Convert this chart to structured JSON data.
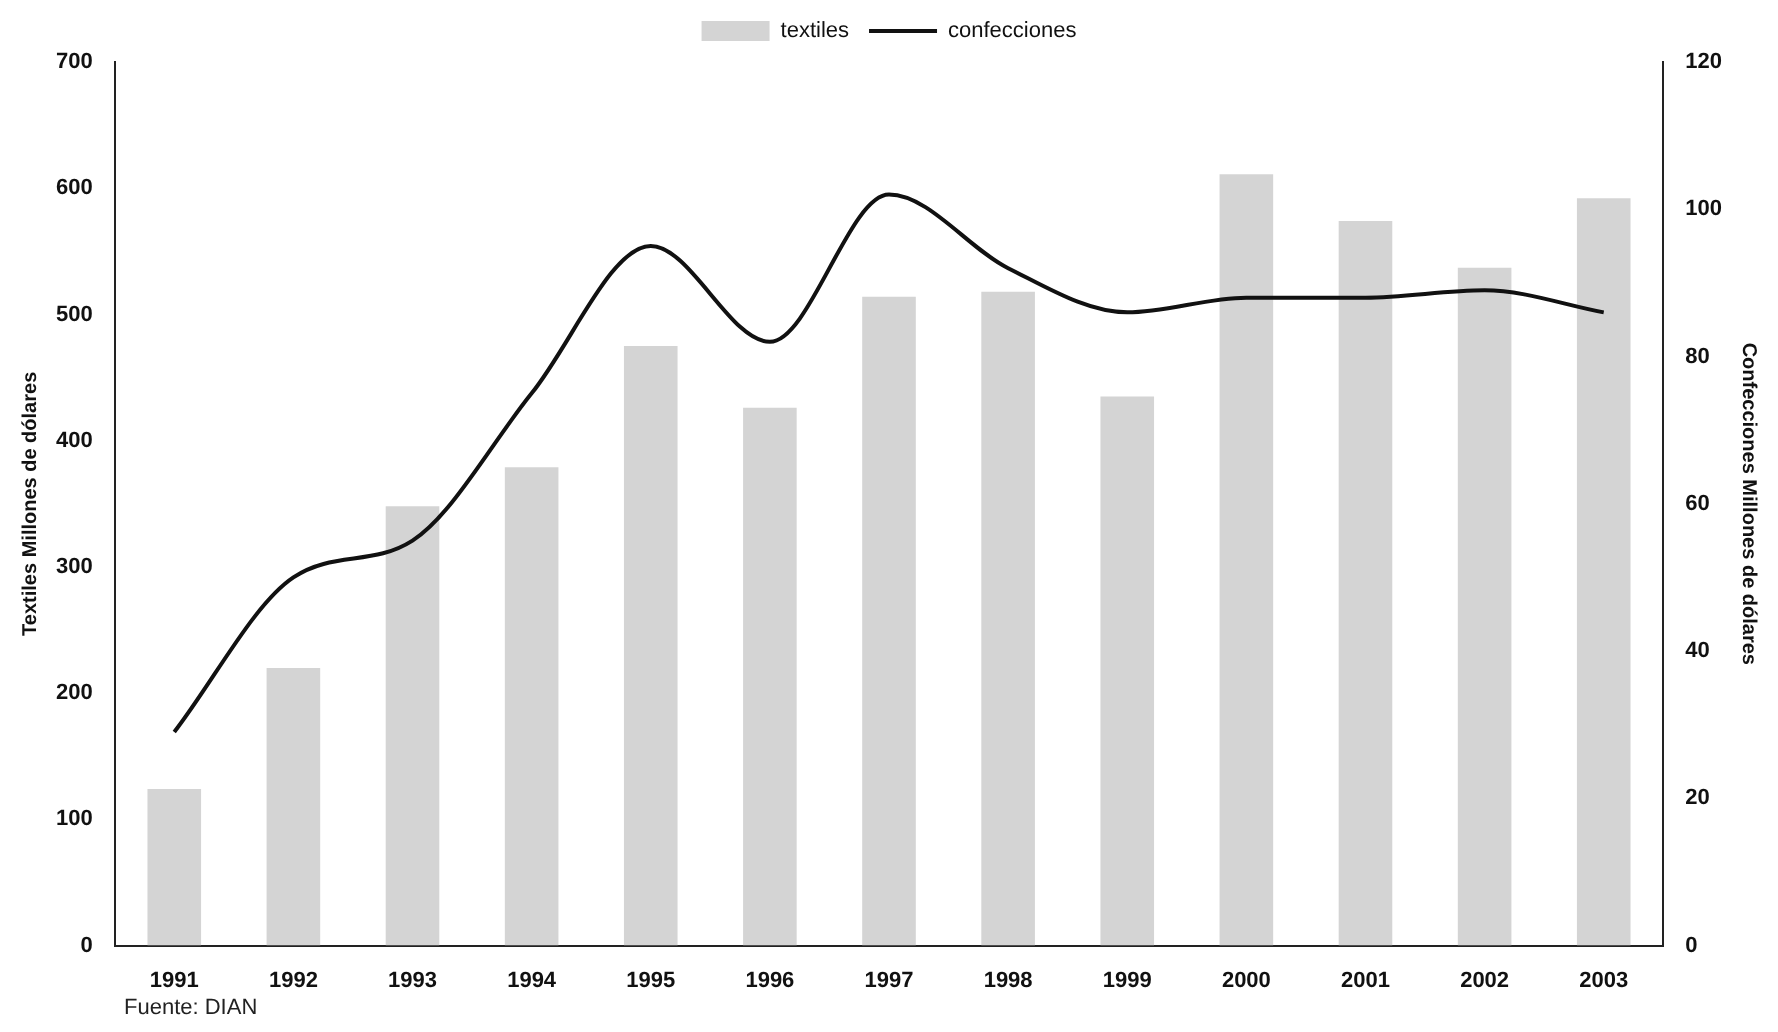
{
  "chart_data": {
    "type": "bar",
    "categories": [
      "1991",
      "1992",
      "1993",
      "1994",
      "1995",
      "1996",
      "1997",
      "1998",
      "1999",
      "2000",
      "2001",
      "2002",
      "2003"
    ],
    "series": [
      {
        "name": "textiles",
        "color": "#d4d4d4",
        "values": [
          124,
          220,
          348,
          379,
          475,
          426,
          514,
          518,
          435,
          611,
          574,
          537,
          592
        ]
      },
      {
        "name": "confecciones",
        "type": "line",
        "axis": "y2",
        "color": "#111111",
        "values": [
          29,
          50,
          55,
          75,
          95,
          82,
          102,
          92,
          86,
          88,
          88,
          89,
          86
        ]
      }
    ],
    "ylabel": "Textiles Millones de dólares",
    "y2label": "Confecciones Millones de dólares",
    "ylim": [
      0,
      700
    ],
    "yticks": [
      0,
      100,
      200,
      300,
      400,
      500,
      600,
      700
    ],
    "y2lim": [
      0,
      120
    ],
    "y2ticks": [
      0,
      20,
      40,
      60,
      80,
      100,
      120
    ],
    "legend": "top",
    "grid": false,
    "marker": "none",
    "annotations": [
      "Fuente: DIAN"
    ]
  }
}
